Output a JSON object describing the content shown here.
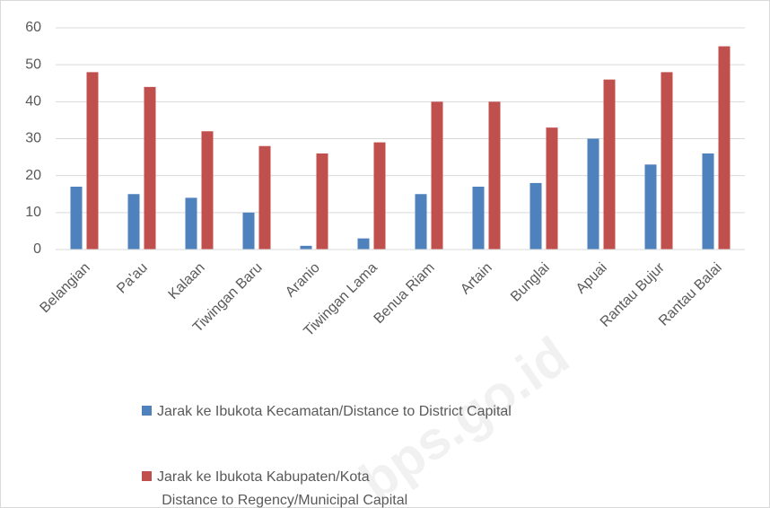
{
  "chart_data": {
    "type": "bar",
    "categories": [
      "Belangian",
      "Pa'au",
      "Kalaan",
      "Tiwingan Baru",
      "Aranio",
      "Tiwingan Lama",
      "Benua Riam",
      "Artain",
      "Bunglai",
      "Apuai",
      "Rantau Bujur",
      "Rantau Balai"
    ],
    "series": [
      {
        "name": "Jarak ke Ibukota Kecamatan/Distance to District Capital",
        "color": "#4f81bd",
        "values": [
          17,
          15,
          14,
          10,
          1,
          3,
          15,
          17,
          18,
          30,
          23,
          26
        ]
      },
      {
        "name": "Jarak ke Ibukota Kabupaten/Kota\n     Distance to Regency/Municipal Capital",
        "color": "#c0504d",
        "values": [
          48,
          44,
          32,
          28,
          26,
          29,
          40,
          40,
          33,
          46,
          48,
          55
        ]
      }
    ],
    "ylim": [
      0,
      60
    ],
    "yticks": [
      0,
      10,
      20,
      30,
      40,
      50,
      60
    ],
    "grid": true,
    "watermark": "bps.go.id"
  }
}
